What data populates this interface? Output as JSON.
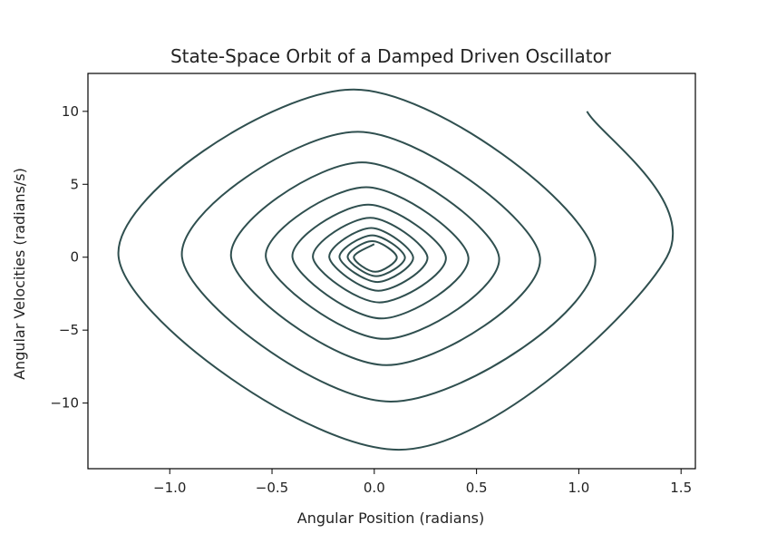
{
  "chart_data": {
    "type": "line",
    "title": "State-Space Orbit of a Damped Driven Oscillator",
    "xlabel": "Angular Position (radians)",
    "ylabel": "Angular Velocities (radians/s)",
    "xlim": [
      -1.4,
      1.57
    ],
    "ylim": [
      -14.5,
      12.6
    ],
    "xticks": [
      -1.0,
      -0.5,
      0.0,
      0.5,
      1.0,
      1.5
    ],
    "xtick_labels": [
      "−1.0",
      "−0.5",
      "0.0",
      "0.5",
      "1.0",
      "1.5"
    ],
    "yticks": [
      10,
      5,
      0,
      -5,
      -10
    ],
    "ytick_labels": [
      "10",
      "5",
      "0",
      "−5",
      "−10"
    ],
    "grid": false,
    "series": [
      {
        "color": "#2f4f4f",
        "points": [
          [
            1.04,
            10.0
          ],
          [
            1.43,
            0.0
          ],
          [
            0.12,
            -13.2
          ],
          [
            -1.25,
            0.0
          ],
          [
            -0.1,
            11.5
          ],
          [
            1.08,
            0.0
          ],
          [
            0.08,
            -9.9
          ],
          [
            -0.94,
            0.0
          ],
          [
            -0.08,
            8.6
          ],
          [
            0.81,
            0.0
          ],
          [
            0.06,
            -7.4
          ],
          [
            -0.7,
            0.0
          ],
          [
            -0.06,
            6.5
          ],
          [
            0.61,
            0.0
          ],
          [
            0.05,
            -5.6
          ],
          [
            -0.53,
            0.0
          ],
          [
            -0.04,
            4.8
          ],
          [
            0.46,
            0.0
          ],
          [
            0.035,
            -4.2
          ],
          [
            -0.4,
            0.0
          ],
          [
            -0.03,
            3.6
          ],
          [
            0.35,
            0.0
          ],
          [
            0.025,
            -3.1
          ],
          [
            -0.3,
            0.0
          ],
          [
            -0.02,
            2.7
          ],
          [
            0.26,
            0.0
          ],
          [
            0.02,
            -2.3
          ],
          [
            -0.22,
            0.0
          ],
          [
            -0.015,
            2.0
          ],
          [
            0.19,
            0.0
          ],
          [
            0.015,
            -1.7
          ],
          [
            -0.17,
            0.0
          ],
          [
            -0.01,
            1.5
          ],
          [
            0.15,
            0.0
          ],
          [
            0.01,
            -1.3
          ],
          [
            -0.13,
            0.0
          ],
          [
            -0.01,
            1.1
          ],
          [
            0.11,
            0.0
          ],
          [
            0.005,
            -1.0
          ],
          [
            -0.1,
            0.0
          ],
          [
            0.0,
            0.9
          ]
        ]
      }
    ]
  }
}
